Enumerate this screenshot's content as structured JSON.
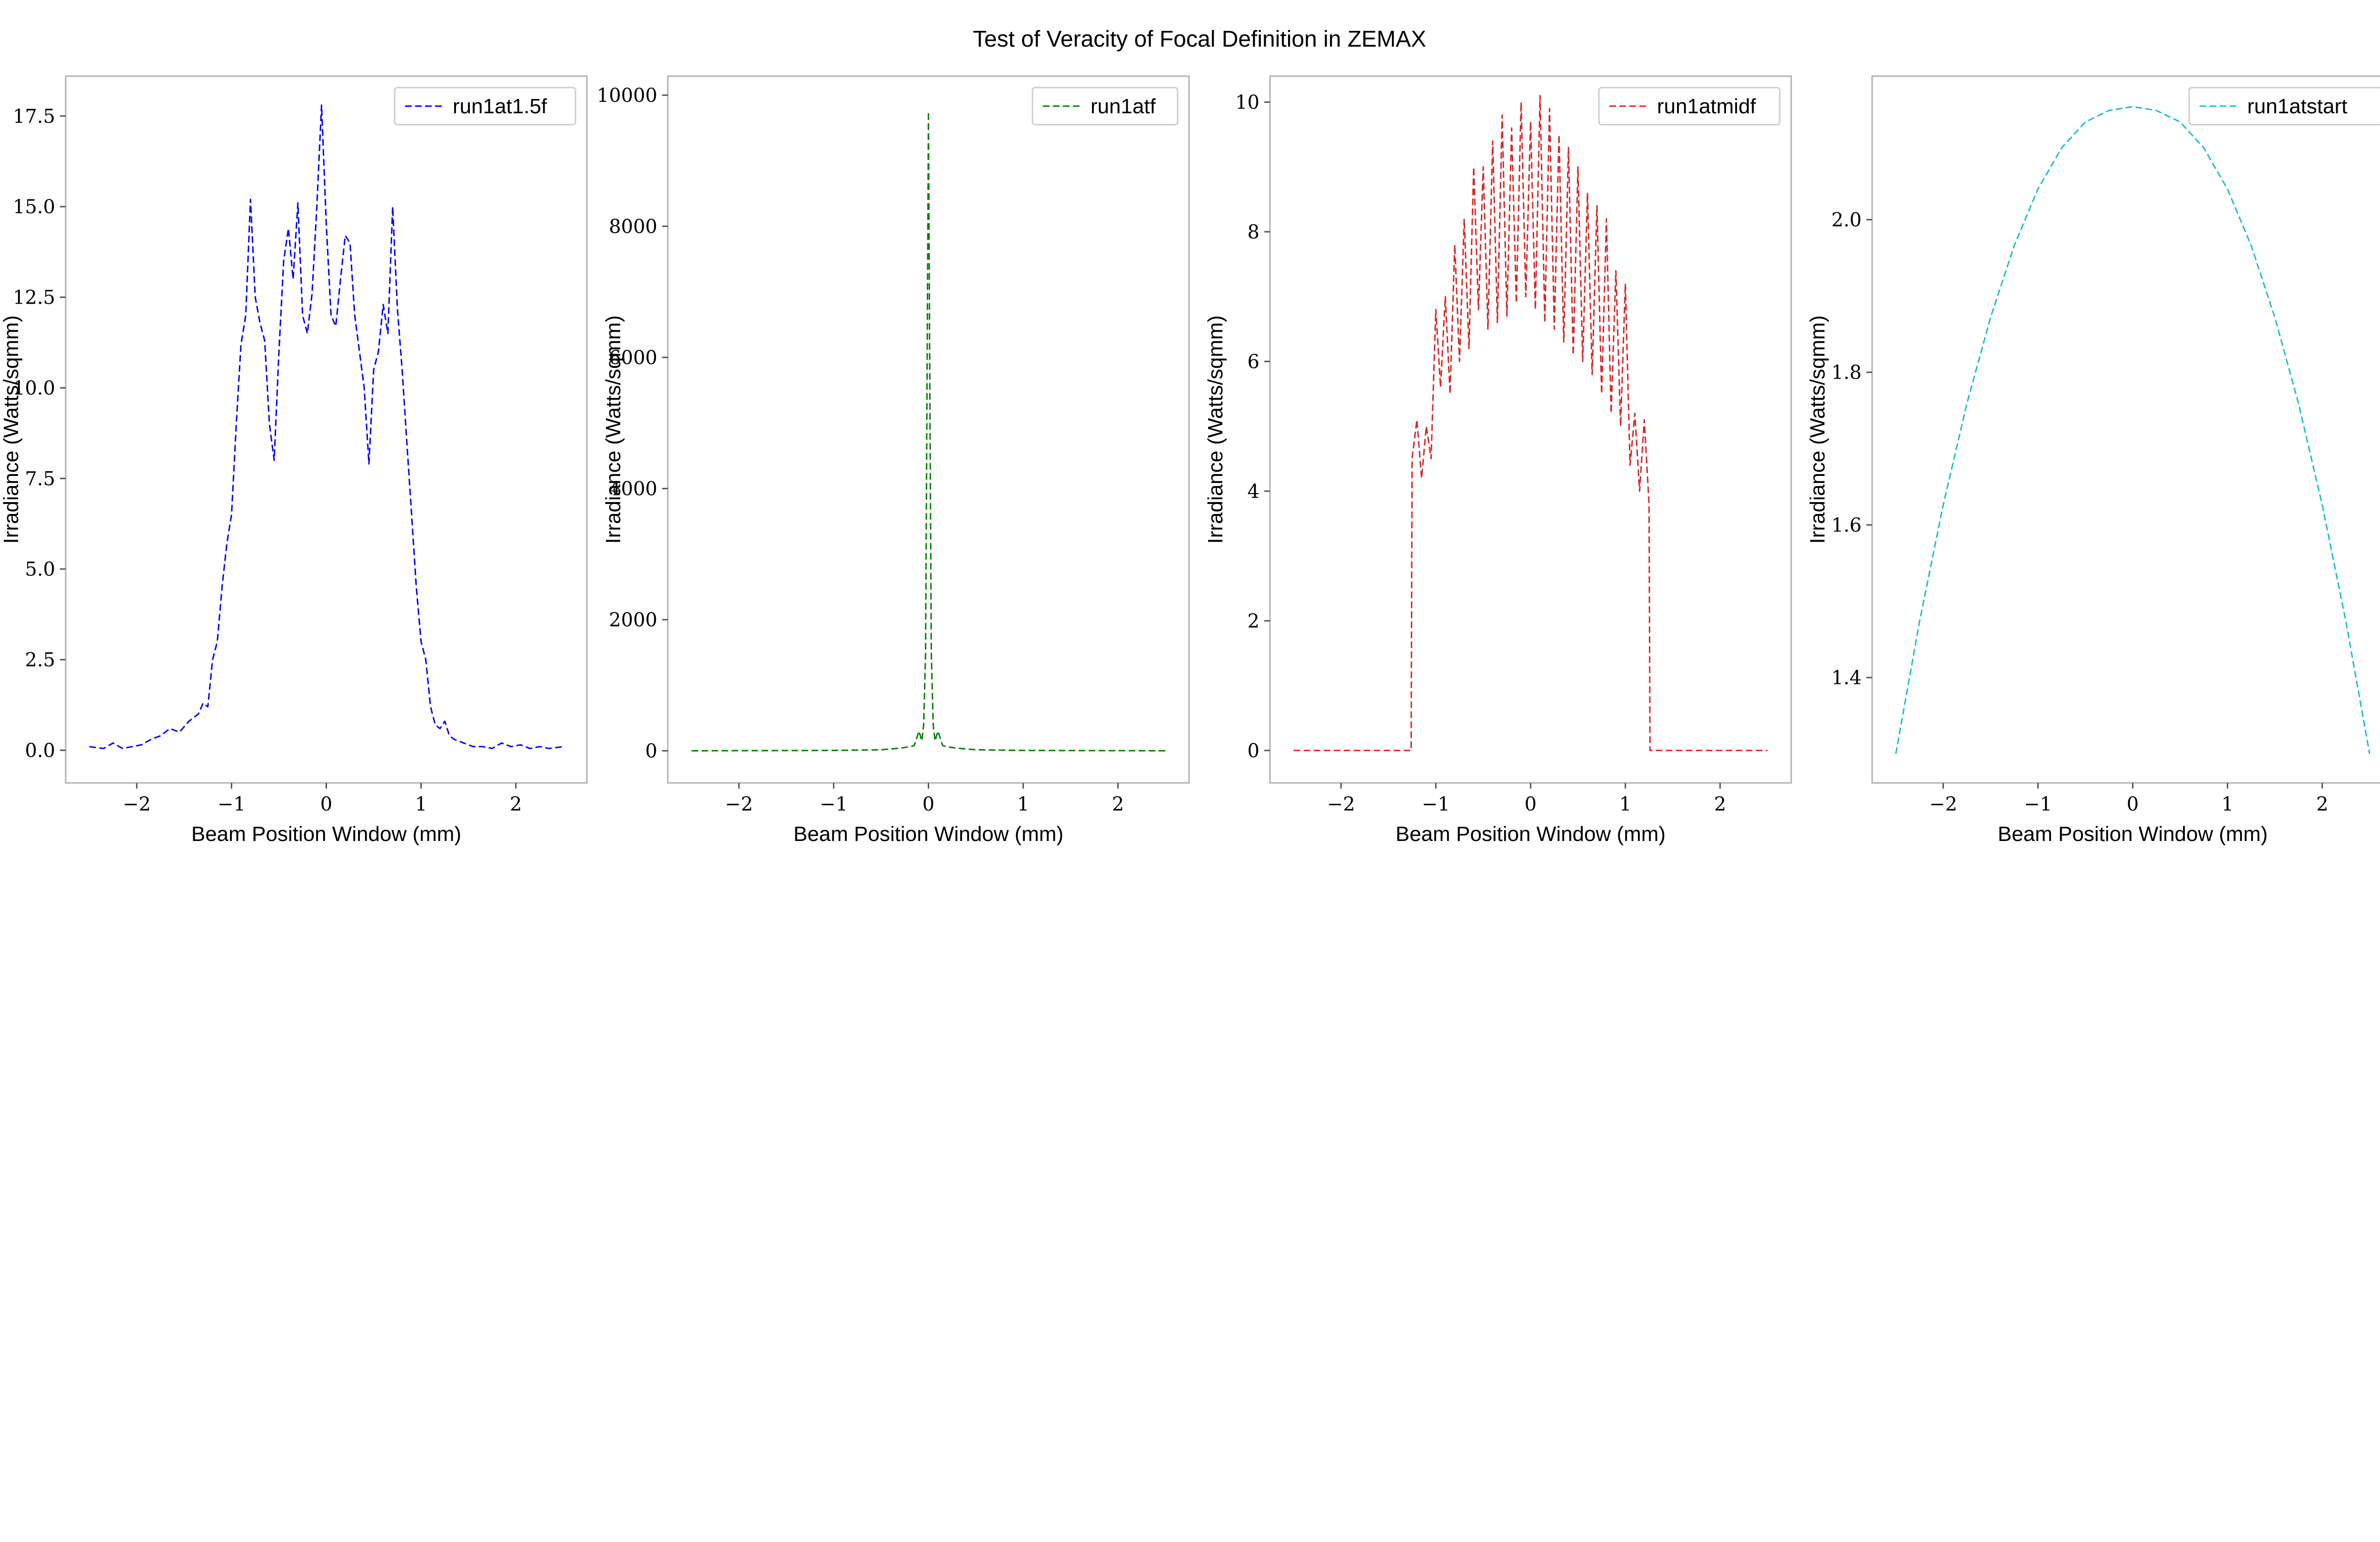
{
  "figure": {
    "title": "Test of Veracity of Focal Definition in ZEMAX"
  },
  "chart_data": [
    {
      "type": "line",
      "title": "",
      "xlabel": "Beam Position Window (mm)",
      "ylabel": "Irradiance (Watts/sqmm)",
      "xlim": [
        -2.75,
        2.75
      ],
      "ylim": [
        -0.9,
        18.6
      ],
      "xticks": [
        -2,
        -1,
        0,
        1,
        2
      ],
      "yticks": [
        0.0,
        2.5,
        5.0,
        7.5,
        10.0,
        12.5,
        15.0,
        17.5
      ],
      "ytick_labels": [
        "0.0",
        "2.5",
        "5.0",
        "7.5",
        "10.0",
        "12.5",
        "15.0",
        "17.5"
      ],
      "legend_position": "top-right",
      "series": [
        {
          "name": "run1at1.5f",
          "color": "#0000ff",
          "style": "dashed",
          "x": [
            -2.5,
            -2.35,
            -2.25,
            -2.15,
            -2.05,
            -1.95,
            -1.85,
            -1.75,
            -1.65,
            -1.55,
            -1.45,
            -1.35,
            -1.3,
            -1.25,
            -1.2,
            -1.15,
            -1.1,
            -1.05,
            -1.0,
            -0.95,
            -0.9,
            -0.85,
            -0.8,
            -0.75,
            -0.7,
            -0.65,
            -0.6,
            -0.55,
            -0.5,
            -0.45,
            -0.4,
            -0.35,
            -0.3,
            -0.25,
            -0.2,
            -0.15,
            -0.1,
            -0.05,
            0.0,
            0.05,
            0.1,
            0.15,
            0.2,
            0.25,
            0.3,
            0.35,
            0.4,
            0.45,
            0.5,
            0.55,
            0.6,
            0.65,
            0.7,
            0.75,
            0.8,
            0.85,
            0.9,
            0.95,
            1.0,
            1.05,
            1.1,
            1.15,
            1.2,
            1.25,
            1.3,
            1.35,
            1.45,
            1.55,
            1.65,
            1.75,
            1.85,
            1.95,
            2.05,
            2.15,
            2.25,
            2.35,
            2.5
          ],
          "y": [
            0.1,
            0.05,
            0.2,
            0.05,
            0.1,
            0.15,
            0.3,
            0.4,
            0.6,
            0.5,
            0.8,
            1.0,
            1.3,
            1.2,
            2.5,
            3.0,
            4.5,
            5.7,
            6.5,
            9.0,
            11.2,
            12.0,
            15.2,
            12.5,
            11.8,
            11.3,
            9.0,
            8.0,
            11.0,
            13.5,
            14.4,
            13.0,
            15.1,
            12.0,
            11.5,
            12.6,
            15.0,
            17.8,
            14.5,
            12.0,
            11.7,
            13.0,
            14.2,
            14.0,
            12.0,
            11.0,
            10.0,
            7.9,
            10.5,
            11.0,
            12.3,
            11.5,
            15.0,
            12.2,
            10.5,
            8.5,
            6.5,
            4.5,
            3.0,
            2.5,
            1.2,
            0.7,
            0.6,
            0.8,
            0.4,
            0.3,
            0.2,
            0.1,
            0.1,
            0.05,
            0.2,
            0.1,
            0.15,
            0.05,
            0.1,
            0.05,
            0.1
          ]
        }
      ]
    },
    {
      "type": "line",
      "title": "",
      "xlabel": "Beam Position Window (mm)",
      "ylabel": "Irradiance (Watts/sqmm)",
      "xlim": [
        -2.75,
        2.75
      ],
      "ylim": [
        -490,
        10290
      ],
      "xticks": [
        -2,
        -1,
        0,
        1,
        2
      ],
      "yticks": [
        0,
        2000,
        4000,
        6000,
        8000,
        10000
      ],
      "ytick_labels": [
        "0",
        "2000",
        "4000",
        "6000",
        "8000",
        "10000"
      ],
      "legend_position": "top-right",
      "series": [
        {
          "name": "run1atf",
          "color": "#008000",
          "style": "dashed",
          "x": [
            -2.5,
            -1.0,
            -0.5,
            -0.3,
            -0.2,
            -0.15,
            -0.1,
            -0.07,
            -0.05,
            -0.03,
            -0.015,
            0.0,
            0.015,
            0.03,
            0.05,
            0.07,
            0.1,
            0.15,
            0.2,
            0.3,
            0.5,
            1.0,
            2.5
          ],
          "y": [
            0,
            5,
            15,
            40,
            60,
            80,
            300,
            150,
            400,
            1500,
            5500,
            9750,
            5500,
            1500,
            400,
            150,
            300,
            80,
            60,
            40,
            15,
            5,
            0
          ]
        }
      ]
    },
    {
      "type": "line",
      "title": "",
      "xlabel": "Beam Position Window (mm)",
      "ylabel": "Irradiance (Watts/sqmm)",
      "xlim": [
        -2.75,
        2.75
      ],
      "ylim": [
        -0.5,
        10.4
      ],
      "xticks": [
        -2,
        -1,
        0,
        1,
        2
      ],
      "yticks": [
        0,
        2,
        4,
        6,
        8,
        10
      ],
      "ytick_labels": [
        "0",
        "2",
        "4",
        "6",
        "8",
        "10"
      ],
      "legend_position": "top-right",
      "series": [
        {
          "name": "run1atmidf",
          "color": "#d62728",
          "style": "dashed",
          "x": [
            -2.5,
            -1.26,
            -1.25,
            -1.2,
            -1.15,
            -1.1,
            -1.05,
            -1.0,
            -0.95,
            -0.9,
            -0.85,
            -0.8,
            -0.75,
            -0.7,
            -0.65,
            -0.6,
            -0.55,
            -0.5,
            -0.45,
            -0.4,
            -0.35,
            -0.3,
            -0.25,
            -0.2,
            -0.15,
            -0.1,
            -0.05,
            0.0,
            0.05,
            0.1,
            0.15,
            0.2,
            0.25,
            0.3,
            0.35,
            0.4,
            0.45,
            0.5,
            0.55,
            0.6,
            0.65,
            0.7,
            0.75,
            0.8,
            0.85,
            0.9,
            0.95,
            1.0,
            1.05,
            1.1,
            1.15,
            1.2,
            1.25,
            1.26,
            2.5
          ],
          "y": [
            0,
            0,
            4.5,
            5.1,
            4.2,
            5.0,
            4.5,
            6.8,
            5.6,
            7.0,
            5.5,
            7.8,
            6.0,
            8.2,
            6.2,
            9.0,
            6.8,
            9.0,
            6.5,
            9.4,
            6.6,
            9.8,
            6.7,
            9.6,
            6.9,
            10.0,
            7.0,
            9.7,
            6.8,
            10.1,
            6.6,
            9.9,
            6.5,
            9.5,
            6.3,
            9.3,
            6.1,
            9.0,
            6.0,
            8.6,
            5.8,
            8.4,
            5.5,
            8.2,
            5.2,
            7.4,
            5.0,
            7.2,
            4.4,
            5.2,
            4.0,
            5.1,
            3.8,
            0,
            0
          ]
        }
      ]
    },
    {
      "type": "line",
      "title": "",
      "xlabel": "Beam Position Window (mm)",
      "ylabel": "Irradiance (Watts/sqmm)",
      "xlim": [
        -2.75,
        2.75
      ],
      "ylim": [
        1.262,
        2.188
      ],
      "xticks": [
        -2,
        -1,
        0,
        1,
        2
      ],
      "yticks": [
        1.4,
        1.6,
        1.8,
        2.0
      ],
      "ytick_labels": [
        "1.4",
        "1.6",
        "1.8",
        "2.0"
      ],
      "legend_position": "top-right",
      "series": [
        {
          "name": "run1atstart",
          "color": "#17becf",
          "style": "dashed",
          "x": [
            -2.5,
            -2.25,
            -2.0,
            -1.75,
            -1.5,
            -1.25,
            -1.0,
            -0.75,
            -0.5,
            -0.25,
            0.0,
            0.25,
            0.5,
            0.75,
            1.0,
            1.25,
            1.5,
            1.75,
            2.0,
            2.25,
            2.5
          ],
          "y": [
            1.3,
            1.473,
            1.626,
            1.759,
            1.872,
            1.966,
            2.04,
            2.094,
            2.128,
            2.143,
            2.148,
            2.143,
            2.128,
            2.094,
            2.04,
            1.966,
            1.872,
            1.759,
            1.626,
            1.473,
            1.3
          ]
        }
      ]
    }
  ]
}
